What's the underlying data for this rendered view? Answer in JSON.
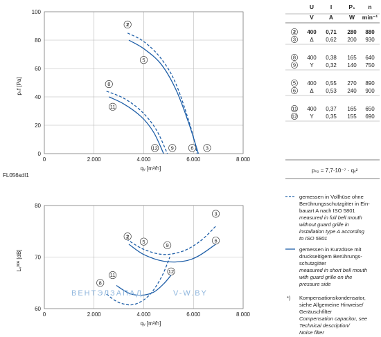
{
  "chart_data": [
    {
      "type": "line",
      "id": "pressure",
      "xlabel": "qᵥ [m³/h]",
      "ylabel": "pₛf [Pa]",
      "xlim": [
        0,
        8000
      ],
      "ylim": [
        0,
        100
      ],
      "xticks": [
        "0",
        "2.000",
        "4.000",
        "6.000",
        "8.000"
      ],
      "yticks": [
        "0",
        "20",
        "40",
        "60",
        "80",
        "100"
      ],
      "grid": true,
      "code_label": "FL056sdI1",
      "series": [
        {
          "name": "2",
          "style": "dashed",
          "x": [
            3350,
            4000,
            4700,
            5300,
            5900,
            6150
          ],
          "y": [
            85,
            79,
            67,
            49,
            18,
            0
          ]
        },
        {
          "name": "5",
          "style": "solid",
          "x": [
            3400,
            4000,
            4700,
            5300,
            5800,
            6200
          ],
          "y": [
            80,
            74,
            63,
            45,
            22,
            0
          ]
        },
        {
          "name": "8",
          "style": "dashed",
          "x": [
            2500,
            3200,
            3900,
            4500,
            4950
          ],
          "y": [
            44,
            39,
            30,
            17,
            0
          ]
        },
        {
          "name": "11",
          "style": "solid",
          "x": [
            2600,
            3200,
            3900,
            4400,
            4800
          ],
          "y": [
            40,
            35,
            26,
            15,
            0
          ]
        }
      ],
      "markers": [
        {
          "label": "2",
          "x": 3350,
          "y": 91,
          "bold": true
        },
        {
          "label": "5",
          "x": 4000,
          "y": 66
        },
        {
          "label": "8",
          "x": 2600,
          "y": 49
        },
        {
          "label": "11",
          "x": 2750,
          "y": 33
        },
        {
          "label": "12",
          "x": 4450,
          "y": 4
        },
        {
          "label": "9",
          "x": 5150,
          "y": 4
        },
        {
          "label": "6",
          "x": 5950,
          "y": 4
        },
        {
          "label": "3",
          "x": 6550,
          "y": 4
        }
      ]
    },
    {
      "type": "line",
      "id": "sound",
      "xlabel": "qᵥ [m³/h]",
      "ylabel": "Lᵥᵂᴬ [dB]",
      "xlim": [
        0,
        8000
      ],
      "ylim": [
        60,
        80
      ],
      "xticks": [
        "0",
        "2.000",
        "4.000",
        "6.000",
        "8.000"
      ],
      "yticks": [
        "60",
        "70",
        "80"
      ],
      "grid": true,
      "series": [
        {
          "name": "2-3",
          "style": "dashed",
          "x": [
            3300,
            4000,
            4800,
            5600,
            6300,
            6900
          ],
          "y": [
            73.5,
            71.5,
            70.5,
            71.2,
            73.2,
            76
          ]
        },
        {
          "name": "5-6",
          "style": "solid",
          "x": [
            3400,
            4000,
            4800,
            5600,
            6200,
            6900
          ],
          "y": [
            72.5,
            70.5,
            69.2,
            69.2,
            70.2,
            72.5
          ]
        },
        {
          "name": "8-9",
          "style": "dashed",
          "x": [
            2500,
            3000,
            3600,
            4200,
            4700,
            5050
          ],
          "y": [
            62.8,
            61.2,
            60.8,
            62.5,
            66,
            70
          ]
        },
        {
          "name": "11-12",
          "style": "solid",
          "x": [
            2900,
            3400,
            3900,
            4400,
            4800,
            5100
          ],
          "y": [
            64.5,
            63,
            62.6,
            63.2,
            64.8,
            66.5
          ]
        }
      ],
      "markers": [
        {
          "label": "2",
          "x": 3350,
          "y": 74,
          "bold": true
        },
        {
          "label": "5",
          "x": 4000,
          "y": 73
        },
        {
          "label": "8",
          "x": 2250,
          "y": 65
        },
        {
          "label": "11",
          "x": 2750,
          "y": 66.5
        },
        {
          "label": "12",
          "x": 5100,
          "y": 67.2
        },
        {
          "label": "9",
          "x": 4950,
          "y": 72.3
        },
        {
          "label": "6",
          "x": 6900,
          "y": 73.2
        },
        {
          "label": "3",
          "x": 6900,
          "y": 78.4
        }
      ]
    }
  ],
  "table": {
    "headers": [
      "U",
      "I",
      "P₁",
      "n"
    ],
    "units": [
      "V",
      "A",
      "W",
      "min⁻¹"
    ],
    "groups": [
      [
        {
          "marker": "2",
          "bold": true,
          "U": "400",
          "I": "0,71",
          "P": "280",
          "n": "880"
        },
        {
          "marker": "3",
          "bold": false,
          "U": "Δ",
          "I": "0,62",
          "P": "200",
          "n": "930"
        }
      ],
      [
        {
          "marker": "8",
          "bold": false,
          "U": "400",
          "I": "0,38",
          "P": "165",
          "n": "640"
        },
        {
          "marker": "9",
          "bold": false,
          "U": "Y",
          "I": "0,32",
          "P": "140",
          "n": "750"
        }
      ],
      [
        {
          "marker": "5",
          "bold": false,
          "U": "400",
          "I": "0,55",
          "P": "270",
          "n": "890"
        },
        {
          "marker": "6",
          "bold": false,
          "U": "Δ",
          "I": "0,53",
          "P": "240",
          "n": "900"
        }
      ],
      [
        {
          "marker": "11",
          "bold": false,
          "U": "400",
          "I": "0,37",
          "P": "165",
          "n": "650"
        },
        {
          "marker": "12",
          "bold": false,
          "U": "Y",
          "I": "0,35",
          "P": "155",
          "n": "690"
        }
      ]
    ],
    "formula": "pₛ₂ = 7,7·10⁻⁷ · qᵥ²"
  },
  "legend": {
    "dashed": {
      "lines": [
        "gemessen in Vollhüse ohne",
        "Berührungsschutzgitter in Ein-",
        "bauart A nach ISO 5801"
      ],
      "italic": [
        "measured in full bell mouth",
        "without guard grille in",
        "installation type A according",
        "to ISO 5801"
      ]
    },
    "solid": {
      "lines": [
        "gemessen in Kurzdüse mit",
        "druckseitigem Berührungs-",
        "schutzgitter"
      ],
      "italic": [
        "measured in short bell mouth",
        "with guard grille on the",
        "pressure side"
      ]
    },
    "note": {
      "mark": "*)",
      "lines": [
        "Kompensationskondensator,",
        "siehe Allgemeine Hinweise/",
        "Geräuschfilter"
      ],
      "italic": [
        "Compensation capacitor, see",
        "Technical description/",
        "Noise filter"
      ]
    }
  },
  "watermark": {
    "left": "ВЕНТЭЛЗАПАД",
    "right": "V-W.BY"
  },
  "colors": {
    "curve": "#1f5fa8",
    "grid": "#b5b5b5",
    "watermark": "#8fb6dd"
  }
}
